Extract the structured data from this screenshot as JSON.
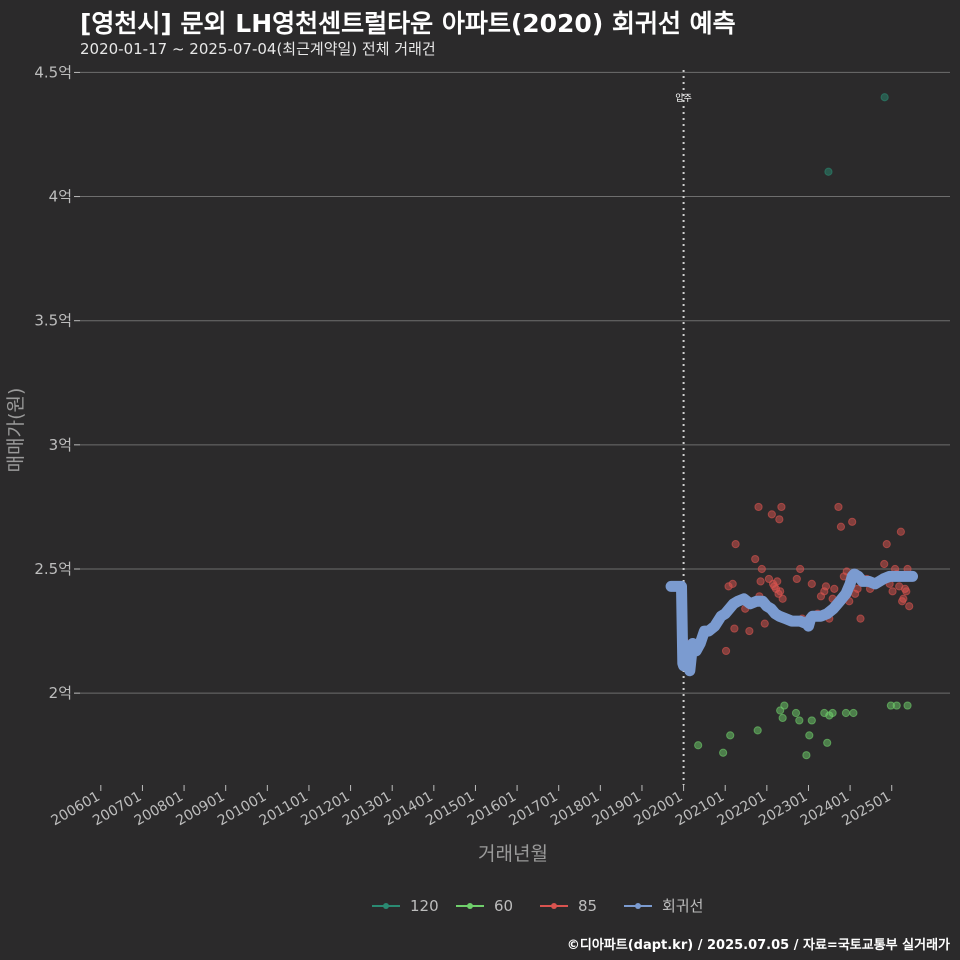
{
  "chart_data": {
    "type": "scatter",
    "title": "[영천시] 문외 LH영천센트럴타운 아파트(2020) 회귀선 예측",
    "subtitle": "2020-01-17 ~ 2025-07-04(최근계약일) 전체 거래건",
    "xlabel": "거래년월",
    "ylabel": "매매가(원)",
    "caption": "©디아파트(dapt.kr) / 2025.07.05 / 자료=국토교통부 실거래가",
    "x_range": [
      2005.5,
      2026.4
    ],
    "ylim": [
      1.63,
      4.55
    ],
    "y_ticks": [
      {
        "value": 2.0,
        "label": "2억"
      },
      {
        "value": 2.5,
        "label": "2.5억"
      },
      {
        "value": 3.0,
        "label": "3억"
      },
      {
        "value": 3.5,
        "label": "3.5억"
      },
      {
        "value": 4.0,
        "label": "4억"
      },
      {
        "value": 4.5,
        "label": "4.5억"
      }
    ],
    "x_ticks": [
      {
        "value": 2006.0,
        "label": "200601"
      },
      {
        "value": 2007.0,
        "label": "200701"
      },
      {
        "value": 2008.0,
        "label": "200801"
      },
      {
        "value": 2009.0,
        "label": "200901"
      },
      {
        "value": 2010.0,
        "label": "201001"
      },
      {
        "value": 2011.0,
        "label": "201101"
      },
      {
        "value": 2012.0,
        "label": "201201"
      },
      {
        "value": 2013.0,
        "label": "201301"
      },
      {
        "value": 2014.0,
        "label": "201401"
      },
      {
        "value": 2015.0,
        "label": "201501"
      },
      {
        "value": 2016.0,
        "label": "201601"
      },
      {
        "value": 2017.0,
        "label": "201701"
      },
      {
        "value": 2018.0,
        "label": "201801"
      },
      {
        "value": 2019.0,
        "label": "201901"
      },
      {
        "value": 2020.0,
        "label": "202001"
      },
      {
        "value": 2021.0,
        "label": "202101"
      },
      {
        "value": 2022.0,
        "label": "202201"
      },
      {
        "value": 2023.0,
        "label": "202301"
      },
      {
        "value": 2024.0,
        "label": "202401"
      },
      {
        "value": 2025.0,
        "label": "202501"
      }
    ],
    "annotations": [
      {
        "x": 2020.0,
        "label": "입주",
        "style": "dotted-vline"
      }
    ],
    "series": [
      {
        "name": "120",
        "kind": "points",
        "color": "#2a8a72",
        "x": [
          2023.48,
          2024.83
        ],
        "y": [
          4.1,
          4.4
        ]
      },
      {
        "name": "60",
        "kind": "points",
        "color": "#6fcf6b",
        "x": [
          2020.35,
          2020.95,
          2021.12,
          2021.78,
          2022.32,
          2022.38,
          2022.42,
          2022.7,
          2022.78,
          2022.95,
          2023.02,
          2023.08,
          2023.38,
          2023.45,
          2023.5,
          2023.58,
          2023.9,
          2024.08,
          2024.98,
          2025.12,
          2025.38
        ],
        "y": [
          1.79,
          1.76,
          1.83,
          1.85,
          1.93,
          1.9,
          1.95,
          1.92,
          1.89,
          1.75,
          1.83,
          1.89,
          1.92,
          1.8,
          1.91,
          1.92,
          1.92,
          1.92,
          1.95,
          1.95,
          1.95
        ]
      },
      {
        "name": "85",
        "kind": "points",
        "color": "#d9534f",
        "x": [
          2020.02,
          2021.02,
          2021.08,
          2021.18,
          2021.22,
          2021.25,
          2021.48,
          2021.58,
          2021.72,
          2021.8,
          2021.82,
          2021.85,
          2021.88,
          2021.95,
          2022.05,
          2022.12,
          2022.15,
          2022.18,
          2022.22,
          2022.25,
          2022.28,
          2022.3,
          2022.32,
          2022.35,
          2022.38,
          2022.45,
          2022.6,
          2022.72,
          2022.8,
          2022.85,
          2023.08,
          2023.22,
          2023.3,
          2023.38,
          2023.42,
          2023.5,
          2023.58,
          2023.62,
          2023.72,
          2023.78,
          2023.85,
          2023.92,
          2023.98,
          2024.05,
          2024.12,
          2024.18,
          2024.25,
          2024.4,
          2024.48,
          2024.55,
          2024.82,
          2024.88,
          2024.95,
          2025.02,
          2025.08,
          2025.12,
          2025.18,
          2025.22,
          2025.25,
          2025.28,
          2025.32,
          2025.35,
          2025.38,
          2025.42
        ],
        "y": [
          2.21,
          2.17,
          2.43,
          2.44,
          2.26,
          2.6,
          2.34,
          2.25,
          2.54,
          2.75,
          2.39,
          2.45,
          2.5,
          2.28,
          2.46,
          2.72,
          2.44,
          2.43,
          2.42,
          2.45,
          2.4,
          2.7,
          2.41,
          2.75,
          2.38,
          2.3,
          2.29,
          2.46,
          2.5,
          2.3,
          2.44,
          2.32,
          2.39,
          2.41,
          2.43,
          2.3,
          2.38,
          2.42,
          2.75,
          2.67,
          2.47,
          2.49,
          2.37,
          2.69,
          2.4,
          2.42,
          2.3,
          2.46,
          2.42,
          2.44,
          2.52,
          2.6,
          2.44,
          2.41,
          2.5,
          2.48,
          2.43,
          2.65,
          2.37,
          2.38,
          2.42,
          2.41,
          2.5,
          2.35
        ]
      },
      {
        "name": "회귀선",
        "kind": "line",
        "color": "#7b9bd0",
        "x": [
          2019.7,
          2019.95,
          2019.98,
          2020.0,
          2020.05,
          2020.1,
          2020.15,
          2020.22,
          2020.3,
          2020.4,
          2020.5,
          2020.6,
          2020.75,
          2020.9,
          2021.0,
          2021.1,
          2021.2,
          2021.3,
          2021.45,
          2021.6,
          2021.75,
          2021.9,
          2022.0,
          2022.1,
          2022.2,
          2022.3,
          2022.45,
          2022.6,
          2022.8,
          2022.95,
          2023.0,
          2023.05,
          2023.1,
          2023.2,
          2023.3,
          2023.45,
          2023.6,
          2023.75,
          2023.9,
          2024.0,
          2024.05,
          2024.1,
          2024.2,
          2024.3,
          2024.45,
          2024.6,
          2024.8,
          2024.95,
          2025.1,
          2025.3,
          2025.5
        ],
        "y": [
          2.43,
          2.43,
          2.12,
          2.11,
          2.11,
          2.16,
          2.09,
          2.2,
          2.17,
          2.2,
          2.25,
          2.25,
          2.27,
          2.31,
          2.32,
          2.34,
          2.36,
          2.37,
          2.38,
          2.36,
          2.37,
          2.37,
          2.35,
          2.34,
          2.32,
          2.31,
          2.3,
          2.29,
          2.29,
          2.28,
          2.27,
          2.3,
          2.31,
          2.31,
          2.31,
          2.32,
          2.34,
          2.37,
          2.4,
          2.44,
          2.47,
          2.48,
          2.47,
          2.45,
          2.45,
          2.44,
          2.46,
          2.47,
          2.47,
          2.47,
          2.47
        ]
      }
    ]
  }
}
